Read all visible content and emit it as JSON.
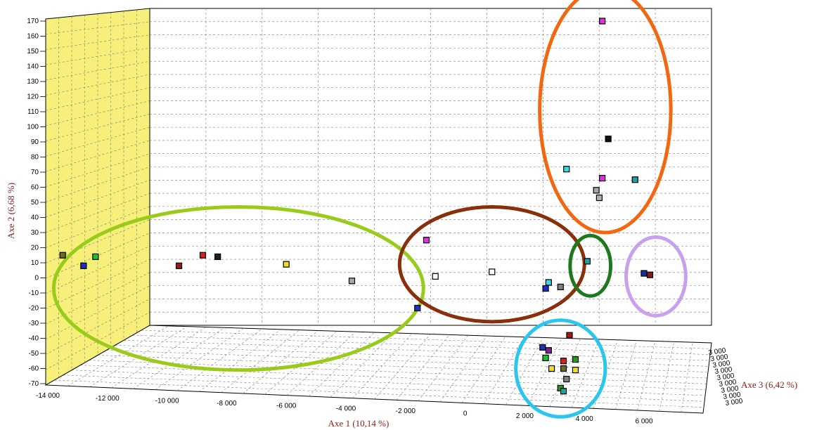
{
  "chart_data": {
    "type": "scatter",
    "projection": "3d",
    "xlabel": "Axe 1 (10,14 %)",
    "ylabel": "Axe 2 (6,68 %)",
    "zlabel": "Axe 3 (6,42 %)",
    "xlim": [
      -14000,
      6000
    ],
    "ylim": [
      -70,
      170
    ],
    "x_ticks": [
      "-14 000",
      "-12 000",
      "-10 000",
      "-8 000",
      "-6 000",
      "-4 000",
      "-2 000",
      "0",
      "2 000",
      "4 000",
      "6 000"
    ],
    "y_ticks": [
      "-70",
      "-60",
      "-50",
      "-40",
      "-30",
      "-20",
      "-10",
      "0",
      "10",
      "20",
      "30",
      "40",
      "50",
      "60",
      "70",
      "80",
      "90",
      "100",
      "110",
      "120",
      "130",
      "140",
      "150",
      "160",
      "170"
    ],
    "z_ticks": [
      "3 000",
      "3 000",
      "3 000",
      "3 000",
      "3 000",
      "3 000",
      "3 000",
      "3 000",
      "3 000"
    ],
    "grid": true,
    "legend": "none",
    "colors": {
      "back_wall_panel": "#f6f07a",
      "grid_line": "#7a7a7a"
    },
    "points": [
      {
        "x": -13500,
        "y": 15,
        "color": "#6b6b22"
      },
      {
        "x": -12800,
        "y": 8,
        "color": "#1f2fbf"
      },
      {
        "x": -12400,
        "y": 14,
        "color": "#1fbf2f"
      },
      {
        "x": -9600,
        "y": 8,
        "color": "#a01818"
      },
      {
        "x": -8800,
        "y": 15,
        "color": "#d42020"
      },
      {
        "x": -8300,
        "y": 14,
        "color": "#202020"
      },
      {
        "x": -6000,
        "y": 9,
        "color": "#f0e020"
      },
      {
        "x": -3800,
        "y": -2,
        "color": "#a8a8a8"
      },
      {
        "x": -1600,
        "y": -20,
        "color": "#1f2fbf"
      },
      {
        "x": -1300,
        "y": 25,
        "color": "#e030e0"
      },
      {
        "x": -1000,
        "y": 1,
        "color": "#ffffff"
      },
      {
        "x": 900,
        "y": 4,
        "color": "#ffffff"
      },
      {
        "x": 2700,
        "y": -7,
        "color": "#1f2fbf"
      },
      {
        "x": 2800,
        "y": -3,
        "color": "#30d8e8"
      },
      {
        "x": 3200,
        "y": -6,
        "color": "#808080"
      },
      {
        "x": 4100,
        "y": 11,
        "color": "#20a0a0"
      },
      {
        "x": 3400,
        "y": 72,
        "color": "#30d8e8"
      },
      {
        "x": 4600,
        "y": 170,
        "color": "#e030e0"
      },
      {
        "x": 4800,
        "y": 92,
        "color": "#101010"
      },
      {
        "x": 4600,
        "y": 66,
        "color": "#e030e0"
      },
      {
        "x": 4400,
        "y": 58,
        "color": "#a8a8a8"
      },
      {
        "x": 4500,
        "y": 53,
        "color": "#b0b0b0"
      },
      {
        "x": 5700,
        "y": 65,
        "color": "#20a0a0"
      },
      {
        "x": 6000,
        "y": 3,
        "color": "#1f2f9f"
      },
      {
        "x": 6200,
        "y": 2,
        "color": "#8b1a1a"
      },
      {
        "x": 3500,
        "y": -38,
        "color": "#a01818"
      },
      {
        "x": 2600,
        "y": -46,
        "color": "#1f2fbf"
      },
      {
        "x": 2700,
        "y": -53,
        "color": "#1fbf2f"
      },
      {
        "x": 2800,
        "y": -48,
        "color": "#8020a0"
      },
      {
        "x": 3300,
        "y": -55,
        "color": "#d42020"
      },
      {
        "x": 3700,
        "y": -54,
        "color": "#20a020"
      },
      {
        "x": 2900,
        "y": -60,
        "color": "#f0e020"
      },
      {
        "x": 3300,
        "y": -60,
        "color": "#6b6b22"
      },
      {
        "x": 3700,
        "y": -61,
        "color": "#f0e020"
      },
      {
        "x": 3400,
        "y": -67,
        "color": "#808080"
      },
      {
        "x": 3200,
        "y": -73,
        "color": "#20a020"
      },
      {
        "x": 3300,
        "y": -75,
        "color": "#20a0a0"
      }
    ],
    "annotations": [
      {
        "shape": "ellipse",
        "color": "#99cc1a",
        "cx": -7600,
        "cy": -7,
        "rx": 6200,
        "ry": 54
      },
      {
        "shape": "ellipse",
        "color": "#8b2e0c",
        "cx": 900,
        "cy": 9,
        "rx": 3100,
        "ry": 38
      },
      {
        "shape": "ellipse",
        "color": "#f2670f",
        "cx": 4700,
        "cy": 111,
        "rx": 2200,
        "ry": 81
      },
      {
        "shape": "ellipse",
        "color": "#1c7a1c",
        "cx": 4200,
        "cy": 8,
        "rx": 680,
        "ry": 20
      },
      {
        "shape": "ellipse",
        "color": "#c8a0ee",
        "cx": 6400,
        "cy": 1,
        "rx": 1000,
        "ry": 26
      },
      {
        "shape": "ellipse",
        "color": "#2bc6ee",
        "cx": 3200,
        "cy": -60,
        "rx": 1500,
        "ry": 32
      }
    ]
  }
}
